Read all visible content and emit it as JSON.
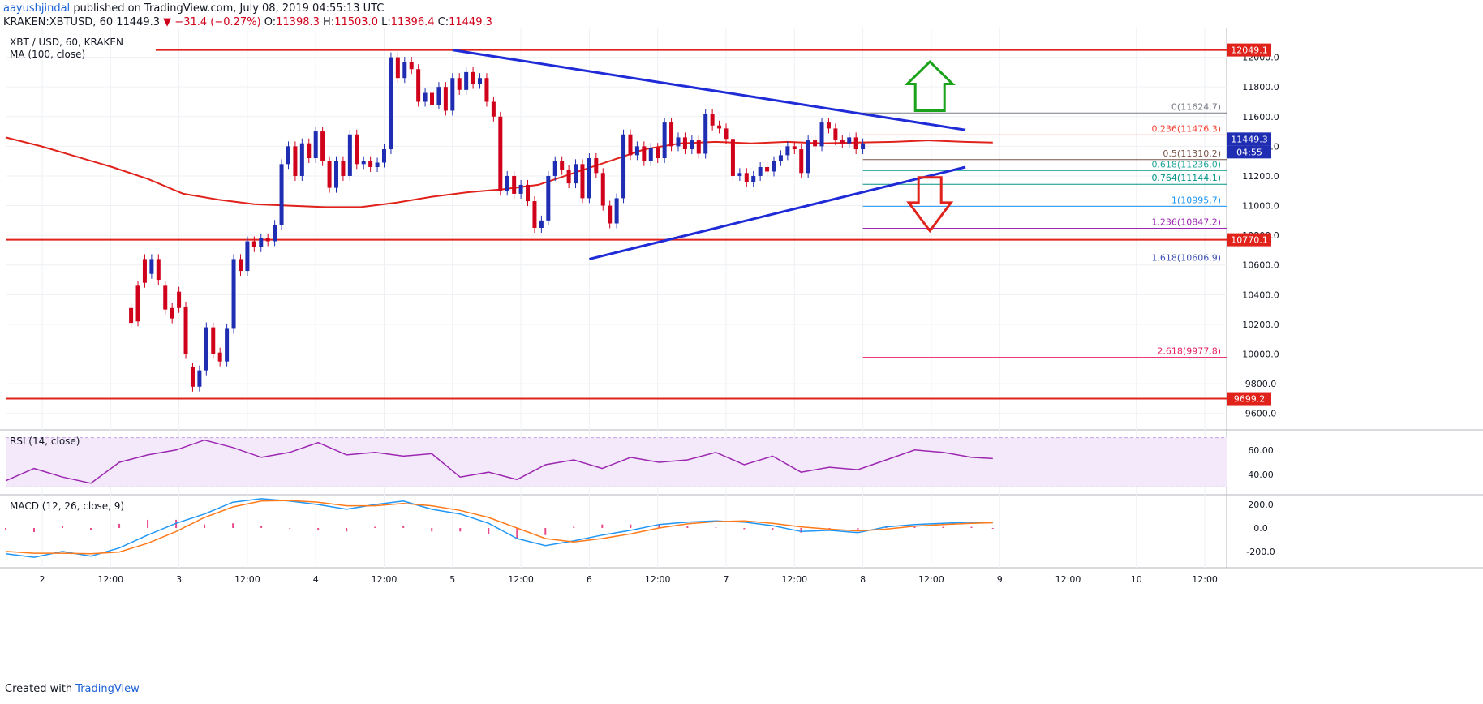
{
  "header": {
    "user": "aayushjindal",
    "published": "published on TradingView.com, July 08, 2019 04:55:13 UTC",
    "symbol": "KRAKEN:XBTUSD, 60",
    "last": "11449.3",
    "change": "▼ −31.4 (−0.27%)",
    "o_label": "O:",
    "o": "11398.3",
    "h_label": "H:",
    "h": "11503.0",
    "l_label": "L:",
    "l": "11396.4",
    "c_label": "C:",
    "c": "11449.3"
  },
  "footer": {
    "created": "Created with",
    "brand": "TradingView"
  },
  "chart_data": [
    {
      "type": "candlestick",
      "title": "XBT / USD, 60, KRAKEN",
      "indicator": "MA (100, close)",
      "ylim": [
        9500,
        12200
      ],
      "y_ticks": [
        9600,
        9800,
        10000,
        10200,
        10400,
        10600,
        10800,
        11000,
        11200,
        11400,
        11600,
        11800,
        12000
      ],
      "x_ticks": [
        "2",
        "12:00",
        "3",
        "12:00",
        "4",
        "12:00",
        "5",
        "12:00",
        "6",
        "12:00",
        "7",
        "12:00",
        "8",
        "12:00",
        "9",
        "12:00",
        "10",
        "12:00"
      ],
      "price_labels": [
        "12049.1",
        "11449.3",
        "04:55",
        "10770.1",
        "9699.2"
      ],
      "horizontal_levels": [
        12049.1,
        10770.1,
        9699.2
      ],
      "trendlines": [
        {
          "name": "upper",
          "points": [
            [
              4.0,
              12049
            ],
            [
              7.75,
              11510
            ]
          ]
        },
        {
          "name": "lower",
          "points": [
            [
              5.0,
              10640
            ],
            [
              7.75,
              11260
            ]
          ]
        }
      ],
      "fibonacci": [
        {
          "ratio": "0",
          "value": 11624.7,
          "color": "#787b86"
        },
        {
          "ratio": "0.236",
          "value": 11476.3,
          "color": "#f44336"
        },
        {
          "ratio": "0.5",
          "value": 11310.2,
          "color": "#795548"
        },
        {
          "ratio": "0.618",
          "value": 11236.0,
          "color": "#26a69a"
        },
        {
          "ratio": "0.764",
          "value": 11144.1,
          "color": "#009688"
        },
        {
          "ratio": "1",
          "value": 10995.7,
          "color": "#2196f3"
        },
        {
          "ratio": "1.236",
          "value": 10847.2,
          "color": "#9c27b0"
        },
        {
          "ratio": "1.618",
          "value": 10606.9,
          "color": "#3f51b5"
        },
        {
          "ratio": "2.618",
          "value": 9977.8,
          "color": "#e91e63"
        }
      ],
      "candles": [
        [
          1.6,
          10310,
          10210
        ],
        [
          1.65,
          10460,
          10220
        ],
        [
          1.7,
          10640,
          10480
        ],
        [
          1.75,
          10540,
          10640
        ],
        [
          1.8,
          10640,
          10500
        ],
        [
          1.85,
          10460,
          10300
        ],
        [
          1.9,
          10310,
          10240
        ],
        [
          1.95,
          10420,
          10310
        ],
        [
          2.0,
          10320,
          10000
        ],
        [
          2.05,
          9910,
          9780
        ],
        [
          2.1,
          9780,
          9890
        ],
        [
          2.15,
          9890,
          10180
        ],
        [
          2.2,
          10180,
          10000
        ],
        [
          2.25,
          10010,
          9950
        ],
        [
          2.3,
          9950,
          10170
        ],
        [
          2.35,
          10170,
          10640
        ],
        [
          2.4,
          10640,
          10560
        ],
        [
          2.45,
          10560,
          10760
        ],
        [
          2.5,
          10760,
          10720
        ],
        [
          2.55,
          10720,
          10780
        ],
        [
          2.6,
          10780,
          10760
        ],
        [
          2.65,
          10760,
          10870
        ],
        [
          2.7,
          10870,
          11280
        ],
        [
          2.75,
          11280,
          11400
        ],
        [
          2.8,
          11400,
          11200
        ],
        [
          2.85,
          11200,
          11420
        ],
        [
          2.9,
          11420,
          11320
        ],
        [
          2.95,
          11320,
          11500
        ],
        [
          3.0,
          11500,
          11300
        ],
        [
          3.05,
          11300,
          11120
        ],
        [
          3.1,
          11120,
          11300
        ],
        [
          3.15,
          11300,
          11200
        ],
        [
          3.2,
          11200,
          11480
        ],
        [
          3.25,
          11480,
          11280
        ],
        [
          3.3,
          11280,
          11300
        ],
        [
          3.35,
          11300,
          11260
        ],
        [
          3.4,
          11260,
          11290
        ],
        [
          3.45,
          11290,
          11380
        ],
        [
          3.5,
          11380,
          12000
        ],
        [
          3.55,
          12000,
          11860
        ],
        [
          3.6,
          11860,
          11970
        ],
        [
          3.65,
          11970,
          11920
        ],
        [
          3.7,
          11920,
          11700
        ],
        [
          3.75,
          11700,
          11760
        ],
        [
          3.8,
          11760,
          11680
        ],
        [
          3.85,
          11680,
          11800
        ],
        [
          3.9,
          11800,
          11640
        ],
        [
          3.95,
          11640,
          11860
        ],
        [
          4.0,
          11860,
          11780
        ],
        [
          4.05,
          11780,
          11900
        ],
        [
          4.1,
          11900,
          11820
        ],
        [
          4.15,
          11820,
          11860
        ],
        [
          4.2,
          11860,
          11700
        ],
        [
          4.25,
          11700,
          11600
        ],
        [
          4.3,
          11600,
          11100
        ],
        [
          4.35,
          11100,
          11200
        ],
        [
          4.4,
          11200,
          11080
        ],
        [
          4.45,
          11080,
          11140
        ],
        [
          4.5,
          11140,
          11030
        ],
        [
          4.55,
          11030,
          10850
        ],
        [
          4.6,
          10850,
          10900
        ],
        [
          4.65,
          10900,
          11200
        ],
        [
          4.7,
          11200,
          11300
        ],
        [
          4.75,
          11300,
          11240
        ],
        [
          4.8,
          11240,
          11150
        ],
        [
          4.85,
          11150,
          11280
        ],
        [
          4.9,
          11280,
          11050
        ],
        [
          4.95,
          11050,
          11320
        ],
        [
          5.0,
          11320,
          11220
        ],
        [
          5.05,
          11220,
          11000
        ],
        [
          5.1,
          11000,
          10880
        ],
        [
          5.15,
          10880,
          11050
        ],
        [
          5.2,
          11050,
          11480
        ],
        [
          5.25,
          11480,
          11340
        ],
        [
          5.3,
          11340,
          11400
        ],
        [
          5.35,
          11400,
          11300
        ],
        [
          5.4,
          11300,
          11390
        ],
        [
          5.45,
          11390,
          11320
        ],
        [
          5.5,
          11320,
          11560
        ],
        [
          5.55,
          11560,
          11400
        ],
        [
          5.6,
          11400,
          11460
        ],
        [
          5.65,
          11460,
          11380
        ],
        [
          5.7,
          11380,
          11440
        ],
        [
          5.75,
          11440,
          11350
        ],
        [
          5.8,
          11350,
          11620
        ],
        [
          5.85,
          11620,
          11540
        ],
        [
          5.9,
          11540,
          11520
        ],
        [
          5.95,
          11520,
          11450
        ],
        [
          6.0,
          11450,
          11200
        ],
        [
          6.05,
          11200,
          11220
        ],
        [
          6.1,
          11220,
          11160
        ],
        [
          6.15,
          11160,
          11200
        ],
        [
          6.2,
          11200,
          11260
        ],
        [
          6.25,
          11260,
          11230
        ],
        [
          6.3,
          11230,
          11300
        ],
        [
          6.35,
          11300,
          11340
        ],
        [
          6.4,
          11340,
          11400
        ],
        [
          6.45,
          11400,
          11380
        ],
        [
          6.5,
          11380,
          11220
        ],
        [
          6.55,
          11220,
          11440
        ],
        [
          6.6,
          11440,
          11400
        ],
        [
          6.65,
          11400,
          11560
        ],
        [
          6.7,
          11560,
          11520
        ],
        [
          6.75,
          11520,
          11440
        ],
        [
          6.8,
          11440,
          11420
        ],
        [
          6.85,
          11420,
          11460
        ],
        [
          6.9,
          11460,
          11380
        ],
        [
          6.95,
          11380,
          11420
        ]
      ],
      "ma_points": [
        [
          0.0,
          11460
        ],
        [
          0.25,
          11400
        ],
        [
          0.5,
          11330
        ],
        [
          0.75,
          11260
        ],
        [
          1.0,
          11180
        ],
        [
          1.25,
          11080
        ],
        [
          1.5,
          11040
        ],
        [
          1.75,
          11010
        ],
        [
          2.0,
          11000
        ],
        [
          2.25,
          10990
        ],
        [
          2.5,
          10990
        ],
        [
          2.75,
          11020
        ],
        [
          3.0,
          11060
        ],
        [
          3.25,
          11090
        ],
        [
          3.5,
          11110
        ],
        [
          3.75,
          11140
        ],
        [
          4.0,
          11220
        ],
        [
          4.25,
          11300
        ],
        [
          4.5,
          11380
        ],
        [
          4.75,
          11420
        ],
        [
          5.0,
          11430
        ],
        [
          5.25,
          11420
        ],
        [
          5.5,
          11430
        ],
        [
          5.75,
          11420
        ],
        [
          6.0,
          11425
        ],
        [
          6.25,
          11430
        ],
        [
          6.5,
          11440
        ],
        [
          6.75,
          11430
        ],
        [
          6.95,
          11425
        ]
      ]
    },
    {
      "type": "line",
      "title": "RSI (14, close)",
      "ylim": [
        25,
        75
      ],
      "y_ticks": [
        40.0,
        60.0
      ],
      "x": [
        0.0,
        0.2,
        0.4,
        0.6,
        0.8,
        1.0,
        1.2,
        1.4,
        1.6,
        1.8,
        2.0,
        2.2,
        2.4,
        2.6,
        2.8,
        3.0,
        3.2,
        3.4,
        3.6,
        3.8,
        4.0,
        4.2,
        4.4,
        4.6,
        4.8,
        5.0,
        5.2,
        5.4,
        5.6,
        5.8,
        6.0,
        6.2,
        6.4,
        6.6,
        6.8,
        6.95
      ],
      "values": [
        35,
        45,
        38,
        33,
        50,
        56,
        60,
        68,
        62,
        54,
        58,
        66,
        56,
        58,
        55,
        57,
        38,
        42,
        36,
        48,
        52,
        45,
        54,
        50,
        52,
        58,
        48,
        55,
        42,
        46,
        44,
        52,
        60,
        58,
        54,
        53
      ]
    },
    {
      "type": "bar",
      "title": "MACD (12, 26, close, 9)",
      "ylim": [
        -270,
        270
      ],
      "y_ticks": [
        200.0,
        0.0,
        -200.0
      ],
      "x": [
        0.0,
        0.2,
        0.4,
        0.6,
        0.8,
        1.0,
        1.2,
        1.4,
        1.6,
        1.8,
        2.0,
        2.2,
        2.4,
        2.6,
        2.8,
        3.0,
        3.2,
        3.4,
        3.6,
        3.8,
        4.0,
        4.2,
        4.4,
        4.6,
        4.8,
        5.0,
        5.2,
        5.4,
        5.6,
        5.8,
        6.0,
        6.2,
        6.4,
        6.6,
        6.8,
        6.95
      ],
      "series": [
        {
          "values": [
            -220,
            -250,
            -200,
            -240,
            -170,
            -60,
            40,
            120,
            220,
            250,
            230,
            200,
            160,
            200,
            230,
            160,
            120,
            40,
            -90,
            -150,
            -110,
            -60,
            -20,
            30,
            50,
            60,
            50,
            20,
            -30,
            -20,
            -40,
            10,
            30,
            40,
            50,
            45
          ]
        },
        {
          "values": [
            -200,
            -215,
            -215,
            -220,
            -205,
            -130,
            -30,
            90,
            180,
            230,
            235,
            220,
            190,
            190,
            210,
            190,
            150,
            90,
            0,
            -90,
            -120,
            -90,
            -50,
            0,
            35,
            55,
            60,
            40,
            10,
            -10,
            -25,
            -10,
            15,
            30,
            40,
            45
          ]
        },
        {
          "values": [
            -20,
            -35,
            15,
            -20,
            35,
            70,
            70,
            30,
            40,
            20,
            -5,
            -20,
            -30,
            10,
            20,
            -30,
            -30,
            -50,
            -90,
            -60,
            10,
            30,
            30,
            30,
            15,
            5,
            -10,
            -20,
            -40,
            -10,
            -15,
            20,
            15,
            10,
            10,
            0
          ]
        }
      ]
    }
  ]
}
